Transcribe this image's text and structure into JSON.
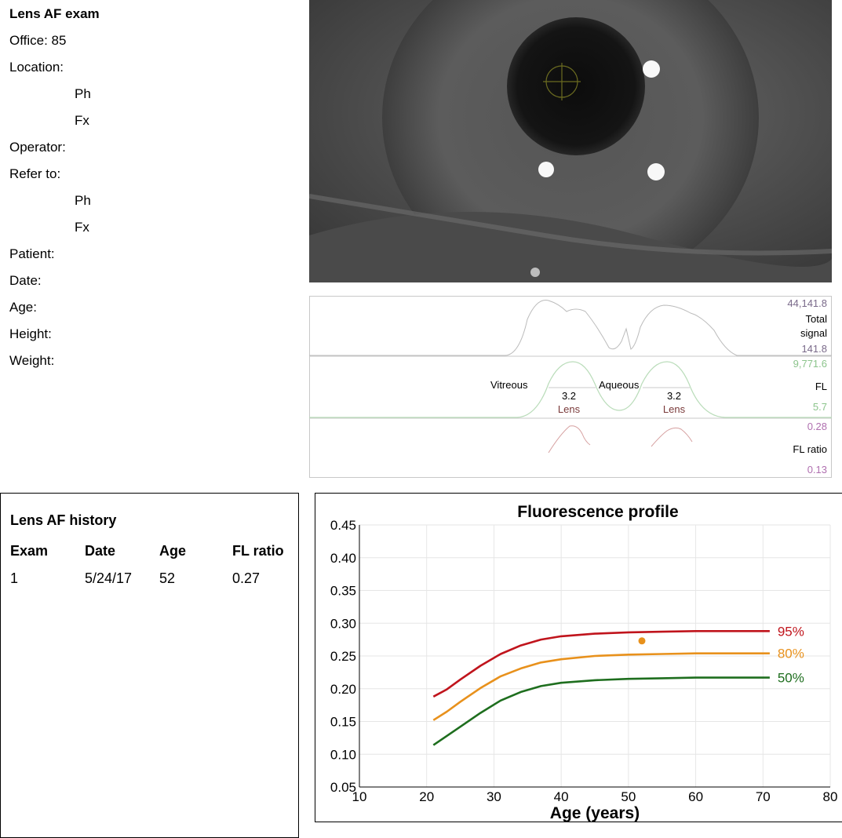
{
  "info": {
    "title": "Lens AF exam",
    "office": "Office: 85",
    "location": "Location:",
    "ph": "Ph",
    "fx": "Fx",
    "operator": "Operator:",
    "refer_to": "Refer to:",
    "patient": "Patient:",
    "date": "Date:",
    "age": "Age:",
    "height": "Height:",
    "weight": "Weight:"
  },
  "signal_panel": {
    "total_max": "44,141.8",
    "total_label_1": "Total",
    "total_label_2": "signal",
    "total_min": "141.8",
    "fl_max": "9,771.6",
    "fl_label": "FL",
    "fl_min": "5.7",
    "ratio_max": "0.28",
    "ratio_label": "FL ratio",
    "ratio_min": "0.13",
    "vitreous": "Vitreous",
    "aqueous": "Aqueous",
    "lens_value_left": "3.2",
    "lens_value_right": "3.2",
    "lens_label": "Lens",
    "colors": {
      "total": "#7a6a8a",
      "fl": "#8cc48c",
      "ratio": "#b070b0",
      "lens": "#7a3a3a"
    }
  },
  "history": {
    "title": "Lens AF history",
    "columns": [
      "Exam",
      "Date",
      "Age",
      "FL ratio"
    ],
    "rows": [
      [
        "1",
        "5/24/17",
        "52",
        "0.27"
      ]
    ]
  },
  "chart_data": {
    "type": "line",
    "title": "Fluorescence profile",
    "xlabel": "Age (years)",
    "ylabel": "",
    "xlim": [
      10,
      80
    ],
    "ylim": [
      0.05,
      0.45
    ],
    "xticks": [
      "10",
      "20",
      "30",
      "40",
      "50",
      "60",
      "70",
      "80"
    ],
    "yticks": [
      "0.05",
      "0.10",
      "0.15",
      "0.20",
      "0.25",
      "0.30",
      "0.35",
      "0.40",
      "0.45"
    ],
    "grid": true,
    "series": [
      {
        "name": "95%",
        "color": "#c0141c",
        "x": [
          21,
          23,
          25,
          28,
          31,
          34,
          37,
          40,
          45,
          50,
          55,
          60,
          65,
          71
        ],
        "y": [
          0.188,
          0.199,
          0.214,
          0.235,
          0.253,
          0.266,
          0.275,
          0.28,
          0.284,
          0.286,
          0.287,
          0.288,
          0.288,
          0.288
        ]
      },
      {
        "name": "80%",
        "color": "#e8911c",
        "x": [
          21,
          23,
          25,
          28,
          31,
          34,
          37,
          40,
          45,
          50,
          55,
          60,
          65,
          71
        ],
        "y": [
          0.152,
          0.165,
          0.18,
          0.201,
          0.219,
          0.231,
          0.24,
          0.245,
          0.25,
          0.252,
          0.253,
          0.254,
          0.254,
          0.254
        ]
      },
      {
        "name": "50%",
        "color": "#1e6e1e",
        "x": [
          21,
          23,
          25,
          28,
          31,
          34,
          37,
          40,
          45,
          50,
          55,
          60,
          65,
          71
        ],
        "y": [
          0.114,
          0.128,
          0.142,
          0.163,
          0.182,
          0.195,
          0.204,
          0.209,
          0.213,
          0.215,
          0.216,
          0.217,
          0.217,
          0.217
        ]
      }
    ],
    "points": [
      {
        "x": 52,
        "y": 0.273,
        "color": "#e8911c"
      }
    ]
  }
}
